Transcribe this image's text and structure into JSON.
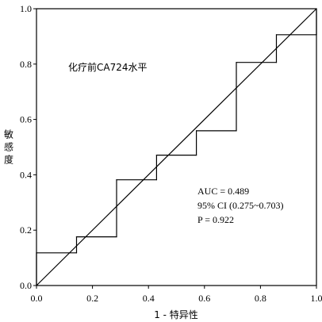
{
  "chart_data": {
    "type": "line",
    "title": "",
    "xlabel": "1 - 特异性",
    "ylabel": "敏感度",
    "xlim": [
      0.0,
      1.0
    ],
    "ylim": [
      0.0,
      1.0
    ],
    "xticks": [
      "0.0",
      "0.2",
      "0.4",
      "0.6",
      "0.8",
      "1.0"
    ],
    "yticks": [
      "0.0",
      "0.2",
      "0.4",
      "0.6",
      "0.8",
      "1.0"
    ],
    "grid": false,
    "series": [
      {
        "name": "化疗前CA724水平",
        "style": "step",
        "x": [
          0.0,
          0.0,
          0.143,
          0.143,
          0.286,
          0.286,
          0.429,
          0.429,
          0.571,
          0.571,
          0.714,
          0.714,
          0.857,
          0.857,
          1.0,
          1.0
        ],
        "y": [
          0.0,
          0.118,
          0.118,
          0.176,
          0.176,
          0.382,
          0.382,
          0.471,
          0.471,
          0.559,
          0.559,
          0.806,
          0.806,
          0.906,
          0.906,
          1.0
        ]
      },
      {
        "name": "",
        "style": "reference",
        "x": [
          0.0,
          1.0
        ],
        "y": [
          0.0,
          1.0
        ]
      }
    ],
    "annotations": [
      "AUC = 0.489",
      "95% CI (0.275~0.703)",
      "P = 0.922"
    ],
    "colors": {
      "line": "#000000",
      "background": "#ffffff"
    }
  }
}
